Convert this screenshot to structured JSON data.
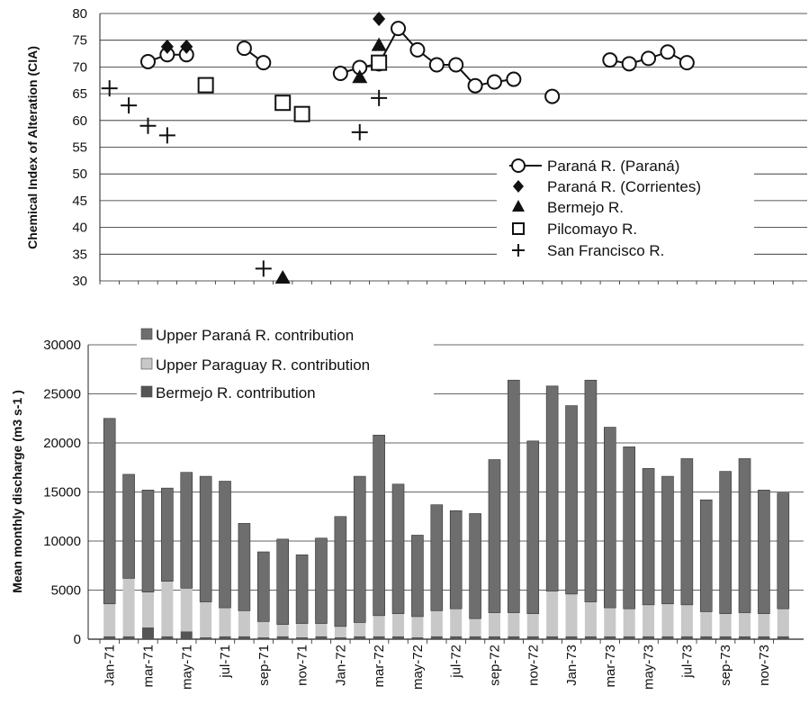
{
  "chart_data": [
    {
      "type": "scatter",
      "ylabel": "Chemical Index of Alteration (CIA)",
      "ylim": [
        30,
        80
      ],
      "y_ticks": [
        30,
        35,
        40,
        45,
        50,
        55,
        60,
        65,
        70,
        75,
        80
      ],
      "grid": true,
      "legend_position": "bottom-right",
      "x_shared_with": "discharge chart months",
      "series": [
        {
          "name": "Paraná R. (Paraná)",
          "marker": "open-circle-line",
          "segments": [
            [
              [
                "Mar-71",
                71
              ],
              [
                "Apr-71",
                72.3
              ],
              [
                "May-71",
                72.3
              ]
            ],
            [
              [
                "Aug-71",
                73.5
              ],
              [
                "Sep-71",
                70.8
              ]
            ],
            [
              [
                "Jan-72",
                68.8
              ],
              [
                "Feb-72",
                69.9
              ],
              [
                "Mar-72",
                70.6
              ],
              [
                "Apr-72",
                77.2
              ],
              [
                "May-72",
                73.2
              ],
              [
                "Jun-72",
                70.4
              ],
              [
                "Jul-72",
                70.4
              ],
              [
                "Aug-72",
                66.5
              ],
              [
                "Sep-72",
                67.2
              ],
              [
                "Oct-72",
                67.7
              ]
            ],
            [
              [
                "Dec-72",
                64.5
              ]
            ],
            [
              [
                "Mar-73",
                71.3
              ],
              [
                "Apr-73",
                70.6
              ],
              [
                "May-73",
                71.6
              ],
              [
                "Jun-73",
                72.8
              ],
              [
                "Jul-73",
                70.8
              ]
            ]
          ]
        },
        {
          "name": "Paraná R. (Corrientes)",
          "marker": "filled-diamond",
          "points": [
            [
              "Apr-71",
              73.8
            ],
            [
              "May-71",
              73.8
            ],
            [
              "Mar-72",
              79
            ]
          ]
        },
        {
          "name": "Bermejo R.",
          "marker": "filled-triangle",
          "points": [
            [
              "Feb-72",
              68
            ],
            [
              "Mar-72",
              74
            ],
            [
              "Oct-71",
              30.5
            ]
          ]
        },
        {
          "name": "Pilcomayo R.",
          "marker": "open-square",
          "points": [
            [
              "Jun-71",
              66.6
            ],
            [
              "Oct-71",
              63.3
            ],
            [
              "Nov-71",
              61.2
            ],
            [
              "Mar-72",
              70.8
            ]
          ]
        },
        {
          "name": "San Francisco R.",
          "marker": "plus",
          "points": [
            [
              "Jan-71",
              66
            ],
            [
              "Feb-71",
              62.8
            ],
            [
              "Mar-71",
              59
            ],
            [
              "Apr-71",
              57.2
            ],
            [
              "Sep-71",
              32.3
            ],
            [
              "Feb-72",
              57.8
            ],
            [
              "Mar-72",
              64.2
            ]
          ]
        }
      ]
    },
    {
      "type": "bar",
      "stacked": true,
      "ylabel": "Mean monthly discharge (m3 s-1 )",
      "ylim": [
        0,
        30000
      ],
      "y_ticks": [
        0,
        5000,
        10000,
        15000,
        20000,
        25000,
        30000
      ],
      "y_tick_labels": [
        "0",
        "5000",
        "10000",
        "15000",
        "20000",
        "25000",
        "30000"
      ],
      "grid": true,
      "legend_position": "top-left",
      "categories": [
        "Jan-71",
        "Feb-71",
        "mar-71",
        "Apr-71",
        "may-71",
        "Jun-71",
        "jul-71",
        "Aug-71",
        "sep-71",
        "Oct-71",
        "nov-71",
        "Dec-71",
        "Jan-72",
        "Feb-72",
        "mar-72",
        "Apr-72",
        "may-72",
        "Jun-72",
        "jul-72",
        "Aug-72",
        "sep-72",
        "Oct-72",
        "nov-72",
        "Dec-72",
        "Jan-73",
        "Feb-73",
        "mar-73",
        "Apr-73",
        "may-73",
        "Jun-73",
        "jul-73",
        "Aug-73",
        "sep-73",
        "Oct-73",
        "nov-73",
        "Dec-73"
      ],
      "shown_tick_labels": [
        "Jan-71",
        "mar-71",
        "may-71",
        "jul-71",
        "sep-71",
        "nov-71",
        "Jan-72",
        "mar-72",
        "may-72",
        "jul-72",
        "sep-72",
        "nov-72",
        "Jan-73",
        "mar-73",
        "may-73",
        "jul-73",
        "sep-73",
        "nov-73"
      ],
      "totals": [
        22500,
        16800,
        15200,
        15400,
        17000,
        16600,
        16100,
        11800,
        8900,
        10200,
        8600,
        10300,
        12500,
        16600,
        20800,
        15800,
        10600,
        13700,
        13100,
        12800,
        18300,
        26400,
        20200,
        25800,
        23800,
        26400,
        21600,
        19600,
        17400,
        16600,
        18400,
        14200,
        17100,
        18400,
        15200,
        14900
      ],
      "series": [
        {
          "name": "Bermejo R. contribution",
          "color": "#555555",
          "values": [
            300,
            300,
            1200,
            300,
            800,
            200,
            300,
            300,
            200,
            300,
            200,
            300,
            200,
            300,
            300,
            300,
            200,
            300,
            300,
            300,
            300,
            300,
            300,
            300,
            300,
            300,
            300,
            300,
            300,
            300,
            300,
            300,
            300,
            300,
            300,
            300
          ]
        },
        {
          "name": "Upper Paraguay R. contribution",
          "color": "#c8c8c8",
          "values": [
            3300,
            5900,
            3600,
            5600,
            4400,
            3600,
            2900,
            2600,
            1600,
            1200,
            1400,
            1300,
            1100,
            1400,
            2100,
            2300,
            2100,
            2600,
            2800,
            1800,
            2400,
            2400,
            2300,
            4600,
            4300,
            3500,
            2900,
            2800,
            3200,
            3300,
            3200,
            2500,
            2300,
            2400,
            2300,
            2800
          ]
        },
        {
          "name": "Upper Paraná R. contribution",
          "color": "#6e6e6e",
          "values": [
            18900,
            10600,
            10400,
            9500,
            11800,
            12800,
            12900,
            8900,
            7100,
            8700,
            7000,
            8700,
            11200,
            14900,
            18400,
            13200,
            8300,
            10800,
            10000,
            10700,
            15600,
            23700,
            17600,
            20900,
            19200,
            22600,
            18400,
            16500,
            13900,
            13000,
            14900,
            11400,
            14500,
            15700,
            12600,
            11800
          ]
        }
      ]
    }
  ]
}
